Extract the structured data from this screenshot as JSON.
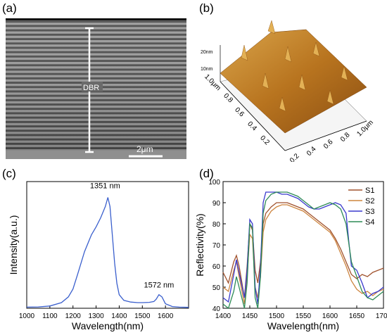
{
  "panels": {
    "a": {
      "label": "(a)",
      "dbr_label": "DBR",
      "scale_label": "2μm"
    },
    "b": {
      "label": "(b)",
      "z_ticks": [
        "20nm",
        "10nm"
      ],
      "left_axis_ticks": [
        "1.0μm",
        "0.8",
        "0.6",
        "0.4",
        "0.2"
      ],
      "right_axis_ticks": [
        "0.2",
        "0.4",
        "0.6",
        "0.8",
        "1.0μm"
      ],
      "surface_color": "#c88a2a"
    },
    "c": {
      "label": "(c)"
    },
    "d": {
      "label": "(d)"
    }
  },
  "chart_data": [
    {
      "panel": "c",
      "type": "line",
      "xlabel": "Wavelength(nm)",
      "ylabel": "Intensity(a.u.)",
      "xlim": [
        1000,
        1700
      ],
      "xticks": [
        1000,
        1100,
        1200,
        1300,
        1400,
        1500,
        1600
      ],
      "grid": false,
      "annotations": [
        {
          "text": "1351 nm",
          "x": 1351,
          "y": 1.0
        },
        {
          "text": "1572 nm",
          "x": 1572,
          "y": 0.12
        }
      ],
      "series": [
        {
          "color": "#3a5fcd",
          "x": [
            1000,
            1050,
            1100,
            1150,
            1180,
            1200,
            1220,
            1250,
            1280,
            1300,
            1320,
            1340,
            1351,
            1360,
            1370,
            1380,
            1390,
            1400,
            1420,
            1450,
            1480,
            1500,
            1530,
            1550,
            1560,
            1572,
            1585,
            1600,
            1630,
            1660,
            1700
          ],
          "y": [
            0.01,
            0.012,
            0.02,
            0.05,
            0.1,
            0.17,
            0.3,
            0.5,
            0.65,
            0.72,
            0.8,
            0.9,
            0.98,
            0.9,
            0.65,
            0.4,
            0.22,
            0.12,
            0.07,
            0.055,
            0.05,
            0.05,
            0.052,
            0.06,
            0.08,
            0.12,
            0.1,
            0.04,
            0.015,
            0.01,
            0.008
          ]
        }
      ]
    },
    {
      "panel": "d",
      "type": "line",
      "xlabel": "Wavelength(nm)",
      "ylabel": "Reflectivity(%)",
      "xlim": [
        1400,
        1700
      ],
      "ylim": [
        40,
        100
      ],
      "xticks": [
        1400,
        1450,
        1500,
        1550,
        1600,
        1650,
        1700
      ],
      "yticks": [
        40,
        50,
        60,
        70,
        80,
        90,
        100
      ],
      "grid": false,
      "legend_position": "right",
      "series": [
        {
          "name": "S1",
          "color": "#a0522d",
          "x": [
            1400,
            1410,
            1420,
            1425,
            1430,
            1440,
            1445,
            1450,
            1455,
            1460,
            1465,
            1470,
            1475,
            1480,
            1490,
            1500,
            1510,
            1520,
            1530,
            1540,
            1550,
            1560,
            1570,
            1580,
            1590,
            1600,
            1610,
            1620,
            1630,
            1640,
            1650,
            1660,
            1670,
            1680,
            1690,
            1700
          ],
          "y": [
            57,
            52,
            62,
            65,
            60,
            45,
            60,
            80,
            77,
            58,
            52,
            62,
            80,
            85,
            88,
            90,
            90,
            90,
            89,
            88,
            87,
            85,
            83,
            81,
            79,
            77,
            73,
            68,
            62,
            56,
            54,
            56,
            55,
            57,
            58,
            59
          ]
        },
        {
          "name": "S2",
          "color": "#cd853f",
          "x": [
            1400,
            1410,
            1420,
            1425,
            1430,
            1440,
            1445,
            1450,
            1455,
            1460,
            1465,
            1470,
            1475,
            1480,
            1490,
            1500,
            1510,
            1520,
            1530,
            1540,
            1550,
            1560,
            1570,
            1580,
            1590,
            1600,
            1610,
            1620,
            1630,
            1640,
            1650,
            1660,
            1670,
            1680,
            1690,
            1700
          ],
          "y": [
            50,
            48,
            58,
            62,
            55,
            42,
            55,
            75,
            73,
            50,
            45,
            55,
            76,
            82,
            86,
            88,
            89,
            89,
            88,
            87,
            86,
            84,
            82,
            80,
            78,
            76,
            72,
            66,
            60,
            53,
            49,
            47,
            48,
            46,
            48,
            49
          ]
        },
        {
          "name": "S3",
          "color": "#3a3acd",
          "x": [
            1400,
            1410,
            1420,
            1425,
            1430,
            1440,
            1445,
            1450,
            1455,
            1460,
            1465,
            1470,
            1475,
            1480,
            1490,
            1500,
            1510,
            1520,
            1530,
            1540,
            1550,
            1560,
            1570,
            1580,
            1590,
            1600,
            1610,
            1620,
            1630,
            1635,
            1640,
            1650,
            1660,
            1670,
            1680,
            1690,
            1700
          ],
          "y": [
            45,
            43,
            56,
            63,
            57,
            45,
            58,
            82,
            80,
            50,
            42,
            60,
            90,
            95,
            95,
            95,
            94,
            94,
            93,
            92,
            90,
            88,
            87,
            87,
            88,
            89,
            90,
            89,
            85,
            72,
            60,
            58,
            52,
            45,
            47,
            48,
            50
          ]
        },
        {
          "name": "S4",
          "color": "#2e8b57",
          "x": [
            1400,
            1410,
            1420,
            1425,
            1430,
            1440,
            1445,
            1450,
            1455,
            1460,
            1465,
            1470,
            1475,
            1480,
            1490,
            1500,
            1510,
            1520,
            1530,
            1540,
            1550,
            1560,
            1570,
            1580,
            1590,
            1600,
            1610,
            1620,
            1630,
            1640,
            1650,
            1660,
            1670,
            1680,
            1690,
            1700
          ],
          "y": [
            42,
            40,
            48,
            55,
            50,
            40,
            52,
            80,
            78,
            45,
            40,
            55,
            85,
            91,
            94,
            95,
            95,
            95,
            94,
            93,
            91,
            89,
            87,
            88,
            89,
            90,
            89,
            87,
            80,
            62,
            55,
            48,
            45,
            44,
            46,
            48
          ]
        }
      ]
    }
  ]
}
